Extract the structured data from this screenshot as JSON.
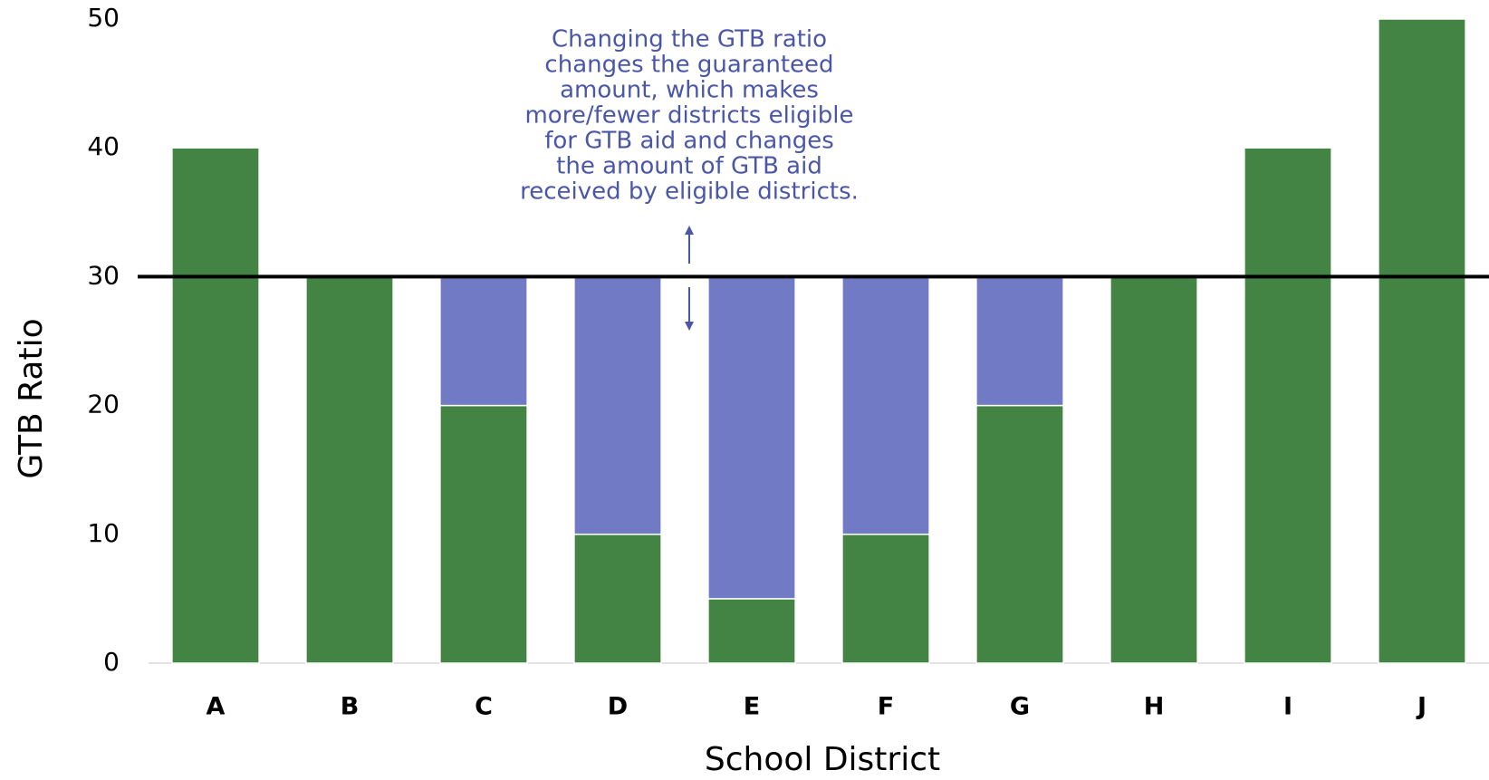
{
  "chart_data": {
    "type": "stacked_bar",
    "categories": [
      "A",
      "B",
      "C",
      "D",
      "E",
      "F",
      "G",
      "H",
      "I",
      "J"
    ],
    "series": [
      {
        "color": "#438343",
        "values": [
          40,
          30,
          20,
          10,
          5,
          10,
          20,
          30,
          40,
          50
        ]
      },
      {
        "color": "#717bc5",
        "values": [
          null,
          null,
          10,
          20,
          25,
          20,
          10,
          null,
          null,
          null
        ]
      }
    ],
    "ylim": [
      0,
      50
    ],
    "yticks": [
      0,
      10,
      20,
      30,
      40,
      50
    ],
    "ylabel": "GTB Ratio",
    "xlabel": "School District",
    "reference_line": 30,
    "annotation": [
      "Changing the GTB ratio",
      "changes the guaranteed",
      "amount, which makes",
      "more/fewer districts eligible",
      "for GTB aid and changes",
      "the amount of GTB aid",
      "received by eligible districts."
    ]
  }
}
